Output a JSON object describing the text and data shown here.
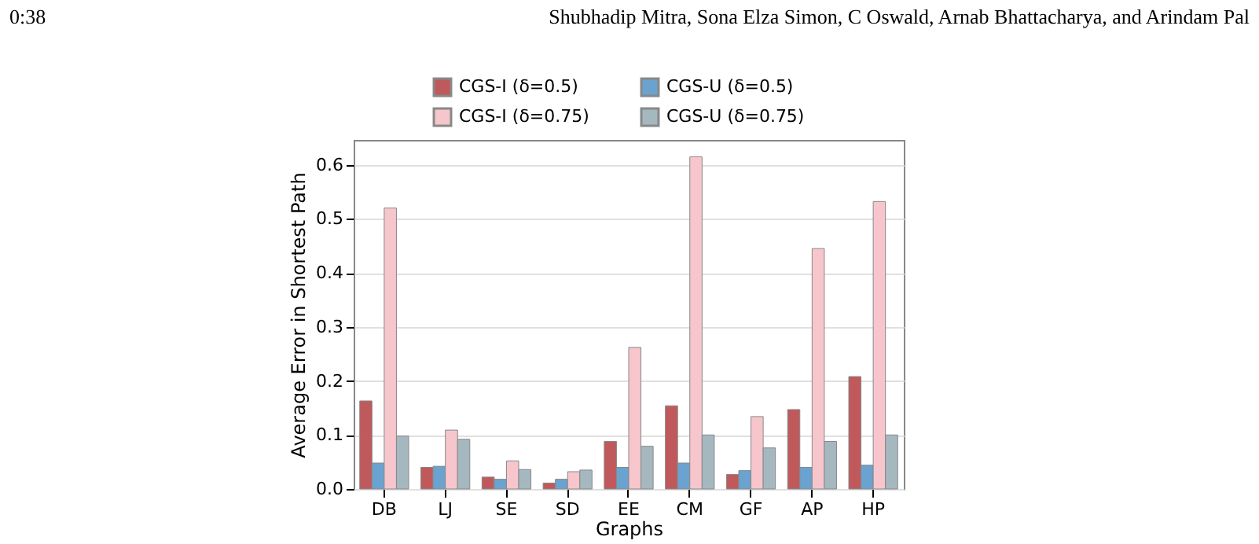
{
  "chart_data": {
    "type": "bar",
    "xlabel": "Graphs",
    "ylabel": "Average Error in Shortest Path",
    "categories": [
      "DB",
      "LJ",
      "SE",
      "SD",
      "EE",
      "CM",
      "GF",
      "AP",
      "HP"
    ],
    "series": [
      {
        "name": "CGS-I (δ=0.5)",
        "color": "#c0595b",
        "values": [
          0.163,
          0.04,
          0.022,
          0.011,
          0.088,
          0.154,
          0.027,
          0.147,
          0.208
        ]
      },
      {
        "name": "CGS-U (δ=0.5)",
        "color": "#6aa3d0",
        "values": [
          0.048,
          0.042,
          0.018,
          0.018,
          0.04,
          0.048,
          0.034,
          0.04,
          0.044
        ]
      },
      {
        "name": "CGS-I (δ=0.75)",
        "color": "#f6c6cc",
        "values": [
          0.52,
          0.109,
          0.052,
          0.032,
          0.262,
          0.615,
          0.134,
          0.445,
          0.532
        ]
      },
      {
        "name": "CGS-U (δ=0.75)",
        "color": "#a5b8c0",
        "values": [
          0.098,
          0.092,
          0.036,
          0.035,
          0.079,
          0.1,
          0.076,
          0.088,
          0.1
        ]
      }
    ],
    "ylim": [
      0,
      0.646
    ],
    "yticks": [
      {
        "value": 0,
        "label": "0.0"
      },
      0.1,
      0.2,
      0.3,
      0.4,
      0.5,
      0.6
    ],
    "grid": "y",
    "legend": "top",
    "annotations": [
      "0:38",
      "Shubhadip Mitra, Sona Elza Simon, C Oswald, Arnab Bhattacharya, and Arindam Pal"
    ]
  }
}
